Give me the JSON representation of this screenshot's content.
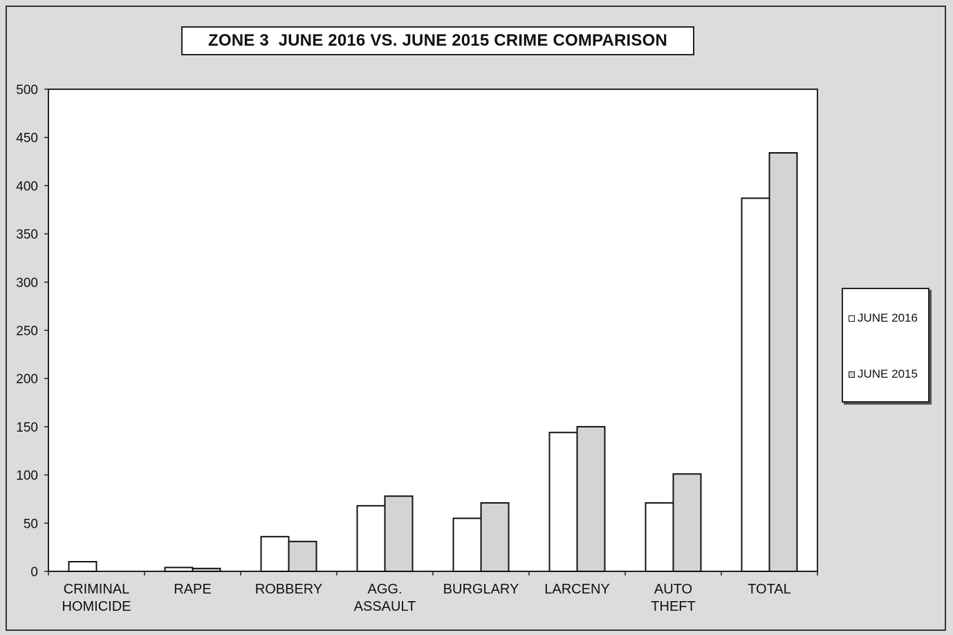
{
  "chart_data": {
    "type": "bar",
    "title": "ZONE 3  JUNE 2016 VS. JUNE 2015 CRIME COMPARISON",
    "categories": [
      [
        "CRIMINAL",
        "HOMICIDE"
      ],
      [
        "RAPE"
      ],
      [
        "ROBBERY"
      ],
      [
        "AGG.",
        "ASSAULT"
      ],
      [
        "BURGLARY"
      ],
      [
        "LARCENY"
      ],
      [
        "AUTO",
        "THEFT"
      ],
      [
        "TOTAL"
      ]
    ],
    "series": [
      {
        "name": "JUNE 2016",
        "color": "#ffffff",
        "values": [
          10,
          4,
          36,
          68,
          55,
          144,
          71,
          387
        ]
      },
      {
        "name": "JUNE 2015",
        "color": "#d4d4d4",
        "values": [
          0,
          3,
          31,
          78,
          71,
          150,
          101,
          434
        ]
      }
    ],
    "y_ticks": [
      "0",
      "50",
      "100",
      "150",
      "200",
      "250",
      "300",
      "350",
      "400",
      "450",
      "500"
    ],
    "ylim": [
      0,
      500
    ],
    "legend_position": "right",
    "grid": false
  }
}
